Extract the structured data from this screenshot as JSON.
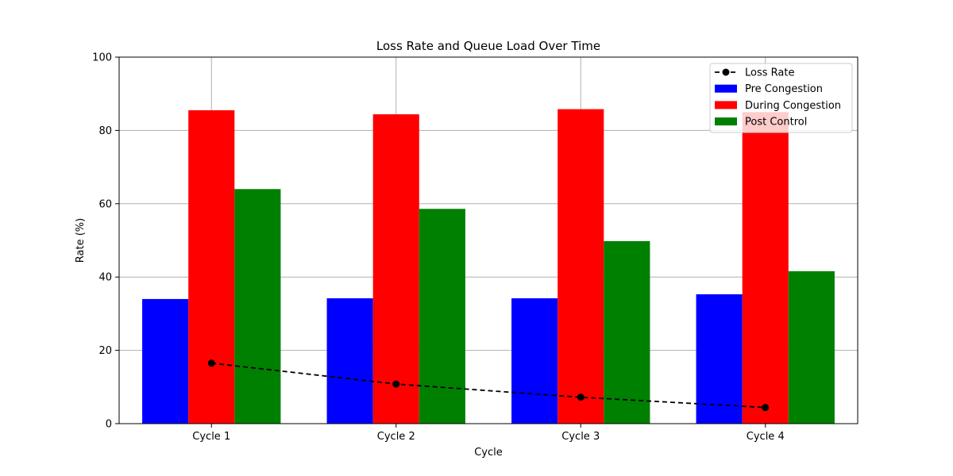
{
  "chart_data": {
    "type": "bar",
    "title": "Loss Rate and Queue Load Over Time",
    "xlabel": "Cycle",
    "ylabel": "Rate (%)",
    "ylim": [
      0,
      100
    ],
    "yticks": [
      0,
      20,
      40,
      60,
      80,
      100
    ],
    "grid": true,
    "legend_position": "top-right",
    "categories": [
      "Cycle 1",
      "Cycle 2",
      "Cycle 3",
      "Cycle 4"
    ],
    "series": [
      {
        "name": "Pre Congestion",
        "kind": "bar",
        "color": "#0000ff",
        "values": [
          34.0,
          34.2,
          34.2,
          35.3
        ]
      },
      {
        "name": "During Congestion",
        "kind": "bar",
        "color": "#ff0000",
        "values": [
          85.5,
          84.4,
          85.8,
          85.0
        ]
      },
      {
        "name": "Post Control",
        "kind": "bar",
        "color": "#008000",
        "values": [
          64.0,
          58.6,
          49.8,
          41.6
        ]
      },
      {
        "name": "Loss Rate",
        "kind": "line",
        "style": "dashed",
        "marker": "circle",
        "color": "#000000",
        "values": [
          16.5,
          10.8,
          7.2,
          4.4
        ]
      }
    ]
  }
}
